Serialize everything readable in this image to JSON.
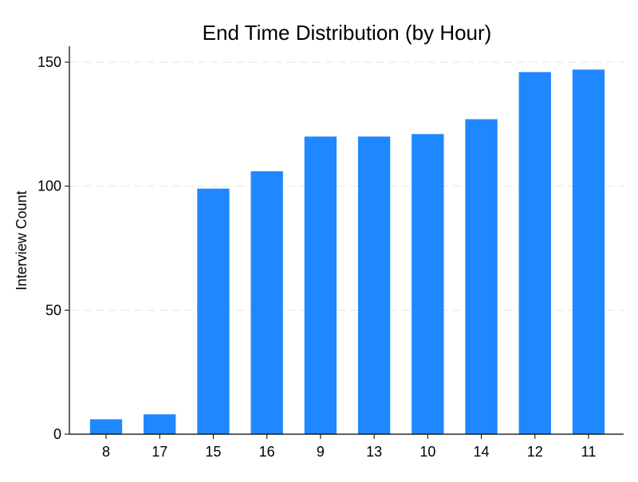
{
  "chart_data": {
    "type": "bar",
    "title": "End Time Distribution (by Hour)",
    "xlabel": "",
    "ylabel": "Interview Count",
    "categories": [
      "8",
      "17",
      "15",
      "16",
      "9",
      "13",
      "10",
      "14",
      "12",
      "11"
    ],
    "values": [
      6,
      8,
      99,
      106,
      120,
      120,
      121,
      127,
      146,
      147
    ],
    "ylim": [
      0,
      157
    ],
    "yticks": [
      "0",
      "50",
      "100",
      "150"
    ],
    "grid": true,
    "legend": "none",
    "bar_color": "#1f87ff",
    "grid_color": "#e6e6e6",
    "axis_color": "#000000"
  }
}
